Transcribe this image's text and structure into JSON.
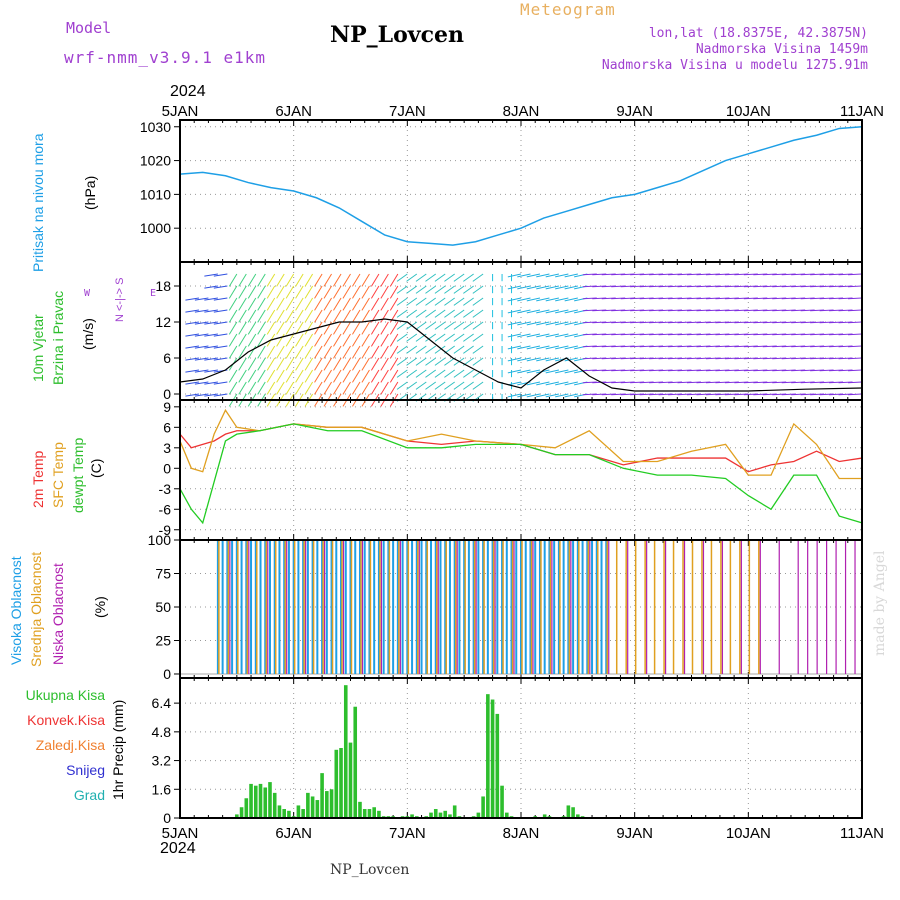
{
  "header": {
    "model_label": "Model",
    "model_name": "wrf-nmm_v3.9.1 e1km",
    "station": "NP_Lovcen",
    "meteogram": "Meteogram",
    "lonlat": "lon,lat (18.8375E, 42.3875N)",
    "elevation": "Nadmorska Visina 1459m",
    "model_elevation": "Nadmorska Visina u modelu 1275.91m",
    "footer_station": "NP_Lovcen",
    "watermark": "made by Angel"
  },
  "axis": {
    "year_top": "2024",
    "year_bottom": "2024",
    "date_labels": [
      "5JAN",
      "6JAN",
      "7JAN",
      "8JAN",
      "9JAN",
      "10JAN",
      "11JAN"
    ]
  },
  "panel_labels": {
    "pressure": [
      "Pritisak na nivou mora",
      "(hPa)"
    ],
    "wind": [
      "10m Vjetar",
      "Brzina i Pravac",
      "(m/s)"
    ],
    "wind_compass": "N <-|-> S",
    "wind_compass_w": "W",
    "wind_compass_e": "E",
    "temp": [
      "2m Temp",
      "SFC Temp",
      "dewpt Temp",
      "(C)"
    ],
    "cloud": [
      "Visoka Oblacnost",
      "Srednja Oblacnost",
      "Niska Oblacnost",
      "(%)"
    ],
    "precip_legend": [
      "Ukupna Kisa",
      "Konvek.Kisa",
      "Zaledj.Kisa",
      "Snijeg",
      "Grad"
    ],
    "precip_unit": "1hr Precip (mm)"
  },
  "colors": {
    "pressure": "#1e9fe6",
    "temp2m": "#ee3333",
    "sfc": "#e0a020",
    "dewpt": "#22cc22",
    "high_cloud": "#1e9fe6",
    "mid_cloud": "#e0a020",
    "low_cloud": "#b020b0",
    "total_precip": "#2dbe2d",
    "conv": "#ee3333",
    "frozen": "#f08030",
    "snow": "#3030d0",
    "hail": "#20b0b0",
    "header_purple": "#a040d0",
    "meteogram": "#e8b060"
  },
  "chart_data": [
    {
      "type": "line",
      "name": "pressure",
      "ylabel": "(hPa)",
      "ylim": [
        990,
        1032
      ],
      "yticks": [
        1000,
        1010,
        1020,
        1030
      ],
      "x_days": [
        0,
        0.2,
        0.4,
        0.6,
        0.8,
        1.0,
        1.2,
        1.4,
        1.6,
        1.8,
        2.0,
        2.2,
        2.4,
        2.6,
        2.8,
        3.0,
        3.2,
        3.4,
        3.6,
        3.8,
        4.0,
        4.2,
        4.4,
        4.6,
        4.8,
        5.0,
        5.2,
        5.4,
        5.6,
        5.8,
        6.0
      ],
      "values": [
        1016,
        1016.5,
        1015.5,
        1013.5,
        1012,
        1011,
        1009,
        1006,
        1002,
        998,
        996,
        995.5,
        995,
        996,
        998,
        1000,
        1003,
        1005,
        1007,
        1009,
        1010,
        1012,
        1014,
        1017,
        1020,
        1022,
        1024,
        1026,
        1027.5,
        1029.5,
        1030
      ]
    },
    {
      "type": "line",
      "name": "wind",
      "ylabel": "(m/s)",
      "ylim": [
        -1,
        22
      ],
      "yticks": [
        0,
        6,
        12,
        18
      ],
      "x_days": [
        0,
        0.2,
        0.4,
        0.6,
        0.8,
        1.0,
        1.2,
        1.4,
        1.6,
        1.8,
        2.0,
        2.2,
        2.4,
        2.6,
        2.8,
        3.0,
        3.2,
        3.4,
        3.6,
        3.8,
        4.0,
        4.5,
        5.0,
        5.5,
        6.0
      ],
      "values": [
        2,
        2.5,
        4,
        7,
        9,
        10,
        11,
        12,
        12,
        12.5,
        12,
        9,
        6,
        4,
        2,
        1,
        4,
        6,
        3,
        1,
        0.5,
        0.5,
        0.5,
        0.8,
        1
      ]
    },
    {
      "type": "line",
      "name": "temperature",
      "ylabel": "(C)",
      "ylim": [
        -10.5,
        10
      ],
      "yticks": [
        -9,
        -6,
        -3,
        0,
        3,
        6,
        9
      ],
      "x_days": [
        0,
        0.1,
        0.2,
        0.3,
        0.4,
        0.5,
        0.7,
        1.0,
        1.3,
        1.6,
        2.0,
        2.3,
        2.6,
        3.0,
        3.3,
        3.6,
        3.9,
        4.2,
        4.5,
        4.8,
        5.0,
        5.2,
        5.4,
        5.6,
        5.8,
        6.0
      ],
      "series": [
        {
          "name": "2m Temp",
          "values": [
            5,
            3,
            3.5,
            4,
            5,
            5.5,
            5.5,
            6.5,
            6,
            6,
            4,
            3.5,
            4,
            3.5,
            2,
            2,
            0.5,
            1.5,
            1.5,
            1.5,
            -0.5,
            0.5,
            1,
            2.5,
            1,
            1.5
          ]
        },
        {
          "name": "SFC Temp",
          "values": [
            4,
            0,
            -0.5,
            5,
            8.5,
            6,
            5.5,
            6.5,
            6,
            6,
            4,
            5,
            4,
            3.5,
            3,
            5.5,
            1,
            1,
            2.5,
            3.5,
            -1,
            -1,
            6.5,
            3.5,
            -1.5,
            -1.5
          ]
        },
        {
          "name": "dewpt Temp",
          "values": [
            -3,
            -6,
            -8,
            -2,
            4,
            5,
            5.5,
            6.5,
            5.5,
            5.5,
            3,
            3,
            3.5,
            3.5,
            2,
            2,
            0,
            -1,
            -1,
            -1.5,
            -4,
            -6,
            -1,
            -1,
            -7,
            -8
          ]
        }
      ]
    },
    {
      "type": "bar",
      "name": "cloud_cover",
      "ylabel": "(%)",
      "ylim": [
        -3,
        100
      ],
      "yticks": [
        0,
        25,
        50,
        75,
        100
      ],
      "note_series": [
        "Visoka Oblacnost",
        "Srednja Oblacnost",
        "Niska Oblacnost"
      ],
      "high_hours": [
        8,
        9,
        10,
        11,
        12,
        13,
        14,
        15,
        16,
        17,
        18,
        19,
        20,
        21,
        22,
        23,
        24,
        25,
        26,
        27,
        28,
        29,
        30,
        31,
        32,
        33,
        34,
        35,
        36,
        37,
        38,
        39,
        40,
        41,
        42,
        43,
        44,
        45,
        46,
        47,
        48,
        49,
        50,
        51,
        52,
        53,
        54,
        55,
        56,
        57,
        58,
        59,
        60,
        61,
        62,
        63,
        64,
        65,
        66,
        67,
        68,
        69,
        70,
        71,
        72,
        73,
        74,
        75,
        76,
        77,
        78,
        79,
        80,
        81,
        82,
        83,
        84,
        85,
        86,
        87,
        88,
        89,
        90
      ],
      "mid_hours": [
        8,
        10,
        12,
        14,
        16,
        18,
        20,
        22,
        24,
        26,
        28,
        30,
        32,
        34,
        36,
        38,
        40,
        42,
        44,
        46,
        48,
        50,
        52,
        54,
        56,
        58,
        60,
        62,
        64,
        66,
        68,
        70,
        72,
        74,
        76,
        78,
        80,
        82,
        84,
        86,
        88,
        90,
        92,
        94,
        96,
        98,
        100,
        102,
        104,
        106,
        108,
        110,
        112,
        114,
        116,
        118,
        120,
        122
      ],
      "low_hours": [
        10,
        14,
        18,
        22,
        26,
        30,
        34,
        38,
        42,
        46,
        50,
        54,
        58,
        62,
        66,
        70,
        74,
        78,
        82,
        86,
        90,
        94,
        98,
        102,
        106,
        110,
        114,
        118,
        122,
        126,
        130,
        132,
        134,
        136,
        138,
        140,
        142
      ],
      "value": 100
    },
    {
      "type": "bar",
      "name": "precipitation",
      "ylabel": "1hr Precip (mm)",
      "ylim": [
        0,
        7.8
      ],
      "yticks": [
        0,
        1.6,
        3.2,
        4.8,
        6.4
      ],
      "hours": [
        12,
        13,
        14,
        15,
        16,
        17,
        18,
        19,
        20,
        21,
        22,
        23,
        24,
        25,
        26,
        27,
        28,
        29,
        30,
        31,
        32,
        33,
        34,
        35,
        36,
        37,
        38,
        39,
        40,
        41,
        42,
        43,
        44,
        45,
        46,
        47,
        48,
        49,
        50,
        51,
        52,
        53,
        54,
        55,
        56,
        57,
        58,
        59,
        60,
        61,
        62,
        63,
        64,
        65,
        66,
        67,
        68,
        69,
        70,
        71,
        72,
        73,
        74,
        75,
        76,
        77,
        78,
        79,
        80,
        81,
        82,
        83,
        84,
        85,
        86,
        87,
        88,
        89,
        90,
        91,
        92,
        93,
        94,
        95,
        96
      ],
      "values": [
        0.2,
        0.6,
        1.1,
        1.9,
        1.8,
        1.9,
        1.7,
        2.0,
        1.4,
        0.7,
        0.5,
        0.4,
        0.1,
        0.7,
        0.5,
        1.4,
        1.2,
        1.0,
        2.5,
        1.5,
        1.6,
        3.8,
        3.9,
        7.4,
        4.2,
        6.2,
        0.9,
        0.5,
        0.5,
        0.6,
        0.4,
        0.1,
        0.1,
        0.1,
        0.0,
        0.1,
        0.1,
        0.2,
        0.1,
        0.0,
        0.1,
        0.3,
        0.5,
        0.3,
        0.4,
        0.2,
        0.7,
        0.1,
        0.0,
        0.0,
        0.1,
        0.3,
        1.2,
        6.9,
        6.6,
        5.8,
        1.8,
        0.3,
        0.1,
        0.0,
        0.0,
        0.0,
        0.0,
        0.1,
        0.0,
        0.2,
        0.1,
        0.0,
        0.0,
        0.1,
        0.7,
        0.6,
        0.2,
        0.1,
        0.0,
        0.0,
        0.0,
        0.0,
        0.0,
        0.0,
        0.0,
        0.0,
        0.0,
        0.0,
        0.0
      ]
    }
  ]
}
